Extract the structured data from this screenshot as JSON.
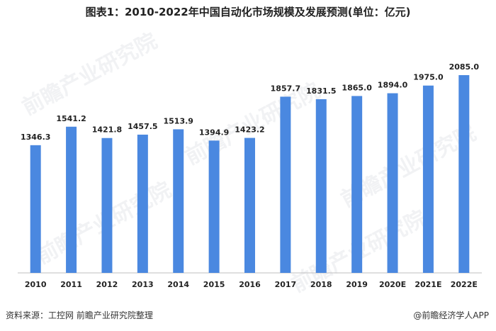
{
  "header": {
    "title": "图表1：2010-2022年中国自动化市场规模及发展预测(单位：亿元)"
  },
  "footer": {
    "source": "资料来源：工控网 前瞻产业研究院整理",
    "credit": "@前瞻经济学人APP"
  },
  "watermark": {
    "text": "前瞻产业研究院"
  },
  "colors": {
    "bar": "#4a88e0",
    "axis": "#bfbfbf",
    "label": "#222222"
  },
  "chart_data": {
    "type": "bar",
    "title": "图表1：2010-2022年中国自动化市场规模及发展预测(单位：亿元)",
    "categories": [
      "2010",
      "2011",
      "2012",
      "2013",
      "2014",
      "2015",
      "2016",
      "2017",
      "2018",
      "2019",
      "2020E",
      "2021E",
      "2022E"
    ],
    "values": [
      1346.3,
      1541.2,
      1421.8,
      1457.5,
      1513.9,
      1394.9,
      1423.2,
      1857.7,
      1831.5,
      1865.0,
      1894.0,
      1975.0,
      2085.0
    ],
    "value_labels": [
      "1346.3",
      "1541.2",
      "1421.8",
      "1457.5",
      "1513.9",
      "1394.9",
      "1423.2",
      "1857.7",
      "1831.5",
      "1865.0",
      "1894.0",
      "1975.0",
      "2085.0"
    ],
    "xlabel": "",
    "ylabel": "",
    "ylim": [
      0,
      2085
    ],
    "grid": false,
    "legend": "none"
  }
}
